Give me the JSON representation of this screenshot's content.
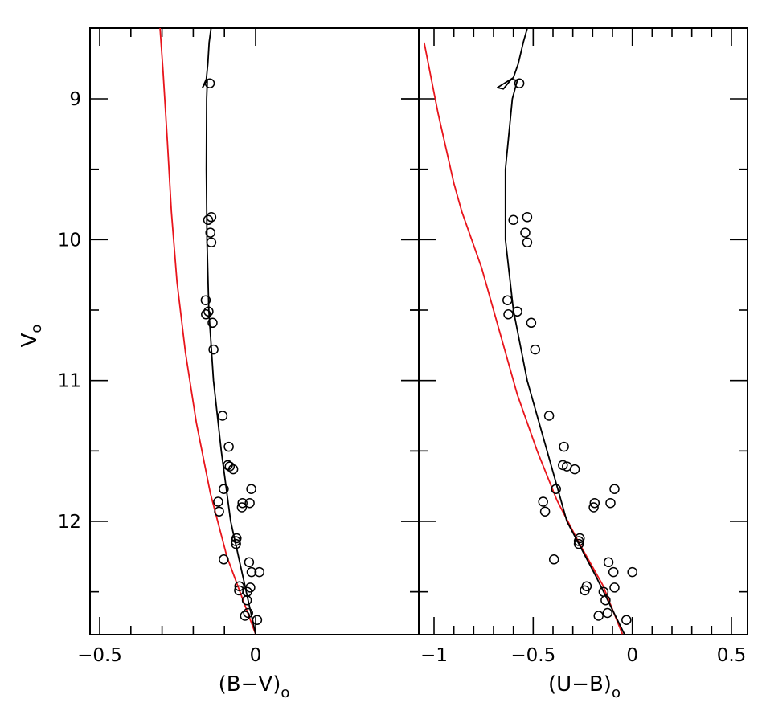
{
  "chart_data": [
    {
      "type": "scatter",
      "xlabel": "(B−V)",
      "ylabel": "V",
      "x_subscript": "o",
      "y_subscript": "o",
      "xlim": [
        -0.5,
        0.0
      ],
      "ylim": [
        12.8,
        8.5
      ],
      "x_ticks": [
        -0.5,
        0
      ],
      "x_tick_labels": [
        "−0.5",
        "0"
      ],
      "x_minor_step": 0.1,
      "y_ticks": [
        9,
        10,
        11,
        12
      ],
      "y_tick_labels": [
        "9",
        "10",
        "11",
        "12"
      ],
      "y_minor_step": 0.5,
      "y_axis_side": "left",
      "grid": false,
      "points": [
        [
          -0.147,
          8.89
        ],
        [
          -0.142,
          9.84
        ],
        [
          -0.152,
          9.86
        ],
        [
          -0.145,
          9.95
        ],
        [
          -0.142,
          10.02
        ],
        [
          -0.16,
          10.43
        ],
        [
          -0.151,
          10.51
        ],
        [
          -0.159,
          10.53
        ],
        [
          -0.138,
          10.59
        ],
        [
          -0.135,
          10.78
        ],
        [
          -0.106,
          11.25
        ],
        [
          -0.086,
          11.47
        ],
        [
          -0.089,
          11.6
        ],
        [
          -0.083,
          11.61
        ],
        [
          -0.072,
          11.63
        ],
        [
          -0.102,
          11.77
        ],
        [
          -0.014,
          11.77
        ],
        [
          -0.12,
          11.86
        ],
        [
          -0.042,
          11.87
        ],
        [
          -0.019,
          11.87
        ],
        [
          -0.044,
          11.9
        ],
        [
          -0.117,
          11.93
        ],
        [
          -0.061,
          12.12
        ],
        [
          -0.064,
          12.14
        ],
        [
          -0.063,
          12.16
        ],
        [
          -0.102,
          12.27
        ],
        [
          -0.021,
          12.29
        ],
        [
          0.012,
          12.36
        ],
        [
          -0.013,
          12.36
        ],
        [
          -0.052,
          12.46
        ],
        [
          -0.017,
          12.47
        ],
        [
          -0.053,
          12.49
        ],
        [
          -0.027,
          12.5
        ],
        [
          -0.028,
          12.56
        ],
        [
          -0.024,
          12.65
        ],
        [
          -0.034,
          12.67
        ],
        [
          0.005,
          12.7
        ]
      ],
      "black_curve": [
        [
          -0.14,
          8.45
        ],
        [
          -0.149,
          8.6
        ],
        [
          -0.153,
          8.75
        ],
        [
          -0.158,
          8.86
        ],
        [
          -0.17,
          8.92
        ],
        [
          -0.162,
          8.89
        ],
        [
          -0.155,
          8.87
        ],
        [
          -0.157,
          9.0
        ],
        [
          -0.158,
          9.5
        ],
        [
          -0.156,
          10.0
        ],
        [
          -0.15,
          10.5
        ],
        [
          -0.135,
          11.0
        ],
        [
          -0.11,
          11.5
        ],
        [
          -0.08,
          12.0
        ],
        [
          -0.04,
          12.4
        ],
        [
          0.0,
          12.8
        ]
      ],
      "red_curve": [
        [
          -0.308,
          8.45
        ],
        [
          -0.297,
          8.8
        ],
        [
          -0.283,
          9.3
        ],
        [
          -0.27,
          9.8
        ],
        [
          -0.252,
          10.3
        ],
        [
          -0.225,
          10.8
        ],
        [
          -0.19,
          11.3
        ],
        [
          -0.145,
          11.8
        ],
        [
          -0.092,
          12.25
        ],
        [
          0.0,
          12.8
        ]
      ],
      "colors": {
        "black_curve": "#000000",
        "red_curve": "#e8141b",
        "points": "#000000"
      }
    },
    {
      "type": "scatter",
      "xlabel": "(U−B)",
      "ylabel": "",
      "x_subscript": "o",
      "xlim": [
        -1.05,
        0.55
      ],
      "ylim": [
        12.8,
        8.5
      ],
      "x_ticks": [
        -1,
        -0.5,
        0,
        0.5
      ],
      "x_tick_labels": [
        "−1",
        "−0.5",
        "0",
        "0.5"
      ],
      "x_minor_step": 0.1,
      "y_ticks": [
        9,
        10,
        11,
        12
      ],
      "y_minor_step": 0.5,
      "y_axis_side": "shared",
      "grid": false,
      "points": [
        [
          -0.57,
          8.89
        ],
        [
          -0.53,
          9.84
        ],
        [
          -0.6,
          9.86
        ],
        [
          -0.54,
          9.95
        ],
        [
          -0.53,
          10.02
        ],
        [
          -0.63,
          10.43
        ],
        [
          -0.58,
          10.51
        ],
        [
          -0.625,
          10.53
        ],
        [
          -0.51,
          10.59
        ],
        [
          -0.49,
          10.78
        ],
        [
          -0.42,
          11.25
        ],
        [
          -0.345,
          11.47
        ],
        [
          -0.35,
          11.6
        ],
        [
          -0.33,
          11.61
        ],
        [
          -0.29,
          11.63
        ],
        [
          -0.385,
          11.77
        ],
        [
          -0.09,
          11.77
        ],
        [
          -0.45,
          11.86
        ],
        [
          -0.19,
          11.87
        ],
        [
          -0.11,
          11.87
        ],
        [
          -0.195,
          11.9
        ],
        [
          -0.44,
          11.93
        ],
        [
          -0.265,
          12.12
        ],
        [
          -0.27,
          12.14
        ],
        [
          -0.27,
          12.16
        ],
        [
          -0.395,
          12.27
        ],
        [
          -0.12,
          12.29
        ],
        [
          -0.095,
          12.36
        ],
        [
          0.0,
          12.36
        ],
        [
          -0.23,
          12.46
        ],
        [
          -0.09,
          12.47
        ],
        [
          -0.24,
          12.49
        ],
        [
          -0.145,
          12.5
        ],
        [
          -0.135,
          12.56
        ],
        [
          -0.125,
          12.65
        ],
        [
          -0.17,
          12.67
        ],
        [
          -0.03,
          12.7
        ]
      ],
      "black_curve": [
        [
          -0.52,
          8.45
        ],
        [
          -0.55,
          8.6
        ],
        [
          -0.575,
          8.75
        ],
        [
          -0.6,
          8.85
        ],
        [
          -0.68,
          8.92
        ],
        [
          -0.65,
          8.93
        ],
        [
          -0.61,
          8.86
        ],
        [
          -0.58,
          8.87
        ],
        [
          -0.605,
          9.0
        ],
        [
          -0.64,
          9.5
        ],
        [
          -0.64,
          10.0
        ],
        [
          -0.6,
          10.5
        ],
        [
          -0.53,
          11.0
        ],
        [
          -0.43,
          11.5
        ],
        [
          -0.33,
          12.0
        ],
        [
          -0.18,
          12.4
        ],
        [
          -0.04,
          12.8
        ]
      ],
      "red_curve": [
        [
          -1.05,
          8.6
        ],
        [
          -0.98,
          9.1
        ],
        [
          -0.9,
          9.6
        ],
        [
          -0.86,
          9.8
        ],
        [
          -0.76,
          10.2
        ],
        [
          -0.66,
          10.7
        ],
        [
          -0.58,
          11.1
        ],
        [
          -0.48,
          11.5
        ],
        [
          -0.38,
          11.85
        ],
        [
          -0.27,
          12.15
        ],
        [
          -0.15,
          12.45
        ],
        [
          -0.05,
          12.8
        ]
      ],
      "colors": {
        "black_curve": "#000000",
        "red_curve": "#e8141b",
        "points": "#000000"
      }
    }
  ]
}
